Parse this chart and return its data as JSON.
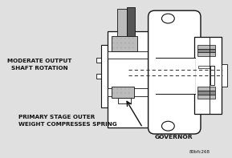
{
  "bg_color": "#e0e0e0",
  "fig_width": 2.89,
  "fig_height": 1.97,
  "dpi": 100,
  "text_moderate_output": "MODERATE OUTPUT\n  SHAFT ROTATION",
  "text_primary_stage": "PRIMARY STAGE OUTER\nWEIGHT COMPRESSES SPRING",
  "text_governor": "GOVERNOR",
  "text_fig_code": "80bfc268",
  "text_color": "#111111",
  "line_color": "#111111",
  "dark_gray": "#555555",
  "mid_gray": "#888888",
  "light_gray": "#bbbbbb",
  "dot_gray": "#aaaaaa",
  "white": "#ffffff",
  "dashed_color": "#333333"
}
